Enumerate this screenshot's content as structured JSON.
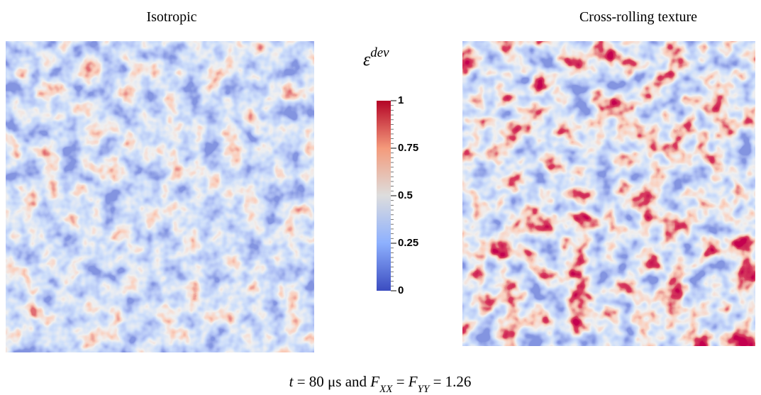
{
  "panels": [
    {
      "title": "Isotropic"
    },
    {
      "title": "Cross-rolling texture"
    }
  ],
  "colorbar": {
    "symbol": "ε",
    "superscript": "dev",
    "lim": [
      0,
      1
    ],
    "ticks": [
      0,
      0.25,
      0.5,
      0.75,
      1
    ]
  },
  "caption": {
    "parts": [
      "t",
      " = 80 μs and ",
      "F",
      "XX",
      " = ",
      "F",
      "YY",
      " = 1.26"
    ]
  }
}
